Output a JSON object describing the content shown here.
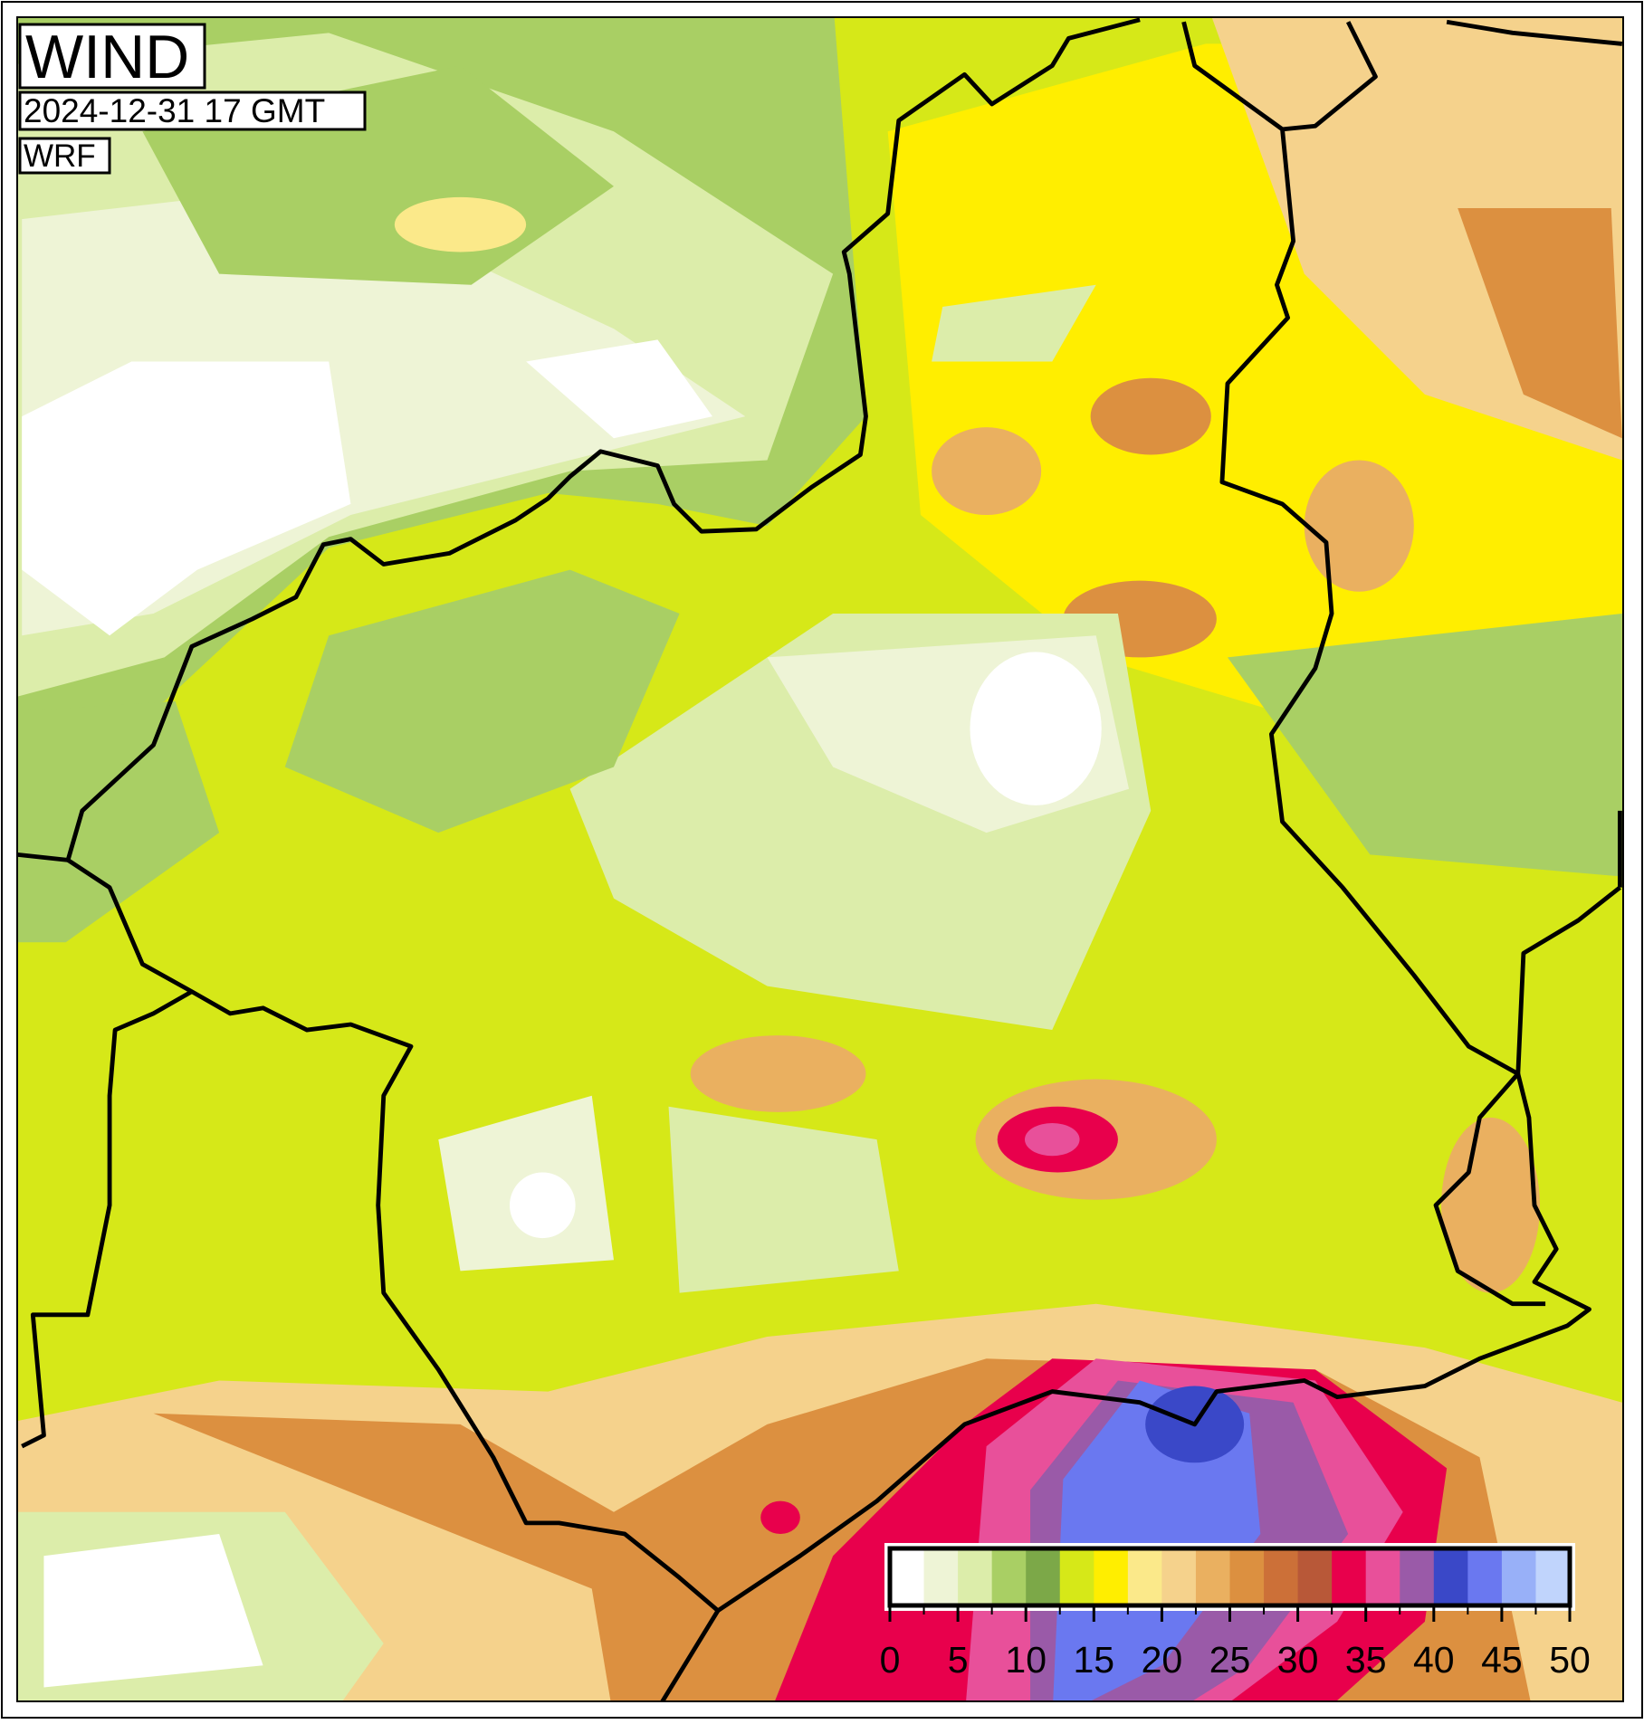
{
  "title": "WIND",
  "date": "2024-12-31 17 GMT",
  "model": "WRF",
  "colorbar": {
    "range": [
      0,
      50
    ],
    "ticks": [
      0,
      5,
      10,
      15,
      20,
      25,
      30,
      35,
      40,
      45,
      50
    ],
    "colors": [
      "#ffffff",
      "#eef4d6",
      "#dcedaa",
      "#a9cf64",
      "#7ca848",
      "#d6e818",
      "#ffee00",
      "#fbe98a",
      "#f5d28c",
      "#eab060",
      "#dc9040",
      "#cc7038",
      "#b85838",
      "#e8004c",
      "#e8509a",
      "#9a5aa8",
      "#3a48c8",
      "#6a78f0",
      "#98b0f8",
      "#c0d4fc"
    ]
  }
}
